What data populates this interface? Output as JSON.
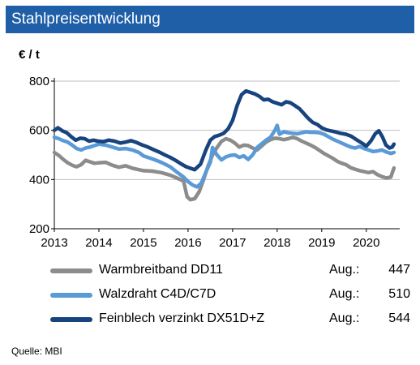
{
  "title": "Stahlpreisentwicklung",
  "source": "Quelle: MBI",
  "chart_data": {
    "type": "line",
    "unit_label": "€ / t",
    "x_label": "",
    "y_label": "",
    "ylim": [
      200,
      800
    ],
    "y_ticks": [
      "200",
      "400",
      "600",
      "800"
    ],
    "xlim": [
      2013.0,
      2020.75
    ],
    "x_ticks": [
      "2013",
      "2014",
      "2015",
      "2016",
      "2017",
      "2018",
      "2019",
      "2020"
    ],
    "grid": "horizontal",
    "legend_position": "bottom",
    "series": [
      {
        "name": "Warmbreitband DD11",
        "color": "#8c8c8c",
        "last_month": "Aug.:",
        "last_value": "447",
        "points": [
          [
            2013.0,
            510
          ],
          [
            2013.1,
            498
          ],
          [
            2013.2,
            482
          ],
          [
            2013.3,
            468
          ],
          [
            2013.4,
            458
          ],
          [
            2013.5,
            452
          ],
          [
            2013.6,
            460
          ],
          [
            2013.7,
            478
          ],
          [
            2013.8,
            472
          ],
          [
            2013.9,
            466
          ],
          [
            2014.0,
            468
          ],
          [
            2014.15,
            470
          ],
          [
            2014.3,
            458
          ],
          [
            2014.45,
            450
          ],
          [
            2014.6,
            456
          ],
          [
            2014.75,
            446
          ],
          [
            2014.9,
            440
          ],
          [
            2015.0,
            436
          ],
          [
            2015.2,
            434
          ],
          [
            2015.4,
            428
          ],
          [
            2015.6,
            418
          ],
          [
            2015.75,
            406
          ],
          [
            2015.9,
            394
          ],
          [
            2015.98,
            330
          ],
          [
            2016.05,
            318
          ],
          [
            2016.15,
            322
          ],
          [
            2016.25,
            350
          ],
          [
            2016.35,
            400
          ],
          [
            2016.45,
            455
          ],
          [
            2016.55,
            500
          ],
          [
            2016.65,
            530
          ],
          [
            2016.75,
            555
          ],
          [
            2016.85,
            566
          ],
          [
            2016.95,
            560
          ],
          [
            2017.05,
            548
          ],
          [
            2017.15,
            532
          ],
          [
            2017.25,
            540
          ],
          [
            2017.35,
            538
          ],
          [
            2017.45,
            528
          ],
          [
            2017.55,
            520
          ],
          [
            2017.65,
            536
          ],
          [
            2017.75,
            552
          ],
          [
            2017.85,
            562
          ],
          [
            2017.95,
            568
          ],
          [
            2018.05,
            566
          ],
          [
            2018.15,
            562
          ],
          [
            2018.25,
            566
          ],
          [
            2018.35,
            572
          ],
          [
            2018.45,
            566
          ],
          [
            2018.55,
            556
          ],
          [
            2018.65,
            548
          ],
          [
            2018.75,
            540
          ],
          [
            2018.85,
            530
          ],
          [
            2018.95,
            518
          ],
          [
            2019.05,
            506
          ],
          [
            2019.15,
            496
          ],
          [
            2019.25,
            486
          ],
          [
            2019.35,
            474
          ],
          [
            2019.45,
            466
          ],
          [
            2019.55,
            460
          ],
          [
            2019.65,
            448
          ],
          [
            2019.75,
            442
          ],
          [
            2019.85,
            436
          ],
          [
            2019.95,
            432
          ],
          [
            2020.05,
            428
          ],
          [
            2020.15,
            432
          ],
          [
            2020.25,
            420
          ],
          [
            2020.35,
            412
          ],
          [
            2020.45,
            406
          ],
          [
            2020.55,
            410
          ],
          [
            2020.62,
            447
          ]
        ]
      },
      {
        "name": "Walzdraht C4D/C7D",
        "color": "#5a9ad6",
        "last_month": "Aug.:",
        "last_value": "510",
        "points": [
          [
            2013.0,
            572
          ],
          [
            2013.1,
            566
          ],
          [
            2013.2,
            558
          ],
          [
            2013.3,
            552
          ],
          [
            2013.4,
            540
          ],
          [
            2013.5,
            526
          ],
          [
            2013.6,
            520
          ],
          [
            2013.7,
            528
          ],
          [
            2013.8,
            532
          ],
          [
            2013.9,
            538
          ],
          [
            2014.0,
            544
          ],
          [
            2014.15,
            540
          ],
          [
            2014.3,
            532
          ],
          [
            2014.45,
            524
          ],
          [
            2014.6,
            526
          ],
          [
            2014.75,
            520
          ],
          [
            2014.9,
            510
          ],
          [
            2015.0,
            496
          ],
          [
            2015.2,
            484
          ],
          [
            2015.4,
            470
          ],
          [
            2015.6,
            452
          ],
          [
            2015.75,
            430
          ],
          [
            2015.9,
            410
          ],
          [
            2016.0,
            392
          ],
          [
            2016.1,
            378
          ],
          [
            2016.2,
            370
          ],
          [
            2016.3,
            386
          ],
          [
            2016.4,
            430
          ],
          [
            2016.5,
            470
          ],
          [
            2016.55,
            530
          ],
          [
            2016.65,
            500
          ],
          [
            2016.75,
            480
          ],
          [
            2016.85,
            492
          ],
          [
            2016.95,
            498
          ],
          [
            2017.05,
            500
          ],
          [
            2017.15,
            490
          ],
          [
            2017.25,
            496
          ],
          [
            2017.35,
            482
          ],
          [
            2017.45,
            500
          ],
          [
            2017.55,
            530
          ],
          [
            2017.65,
            545
          ],
          [
            2017.75,
            560
          ],
          [
            2017.85,
            572
          ],
          [
            2017.95,
            600
          ],
          [
            2018.0,
            620
          ],
          [
            2018.05,
            584
          ],
          [
            2018.15,
            594
          ],
          [
            2018.25,
            590
          ],
          [
            2018.35,
            588
          ],
          [
            2018.45,
            586
          ],
          [
            2018.55,
            590
          ],
          [
            2018.65,
            594
          ],
          [
            2018.75,
            592
          ],
          [
            2018.85,
            592
          ],
          [
            2018.95,
            590
          ],
          [
            2019.05,
            584
          ],
          [
            2019.15,
            574
          ],
          [
            2019.25,
            564
          ],
          [
            2019.35,
            556
          ],
          [
            2019.45,
            548
          ],
          [
            2019.55,
            540
          ],
          [
            2019.65,
            532
          ],
          [
            2019.75,
            528
          ],
          [
            2019.85,
            534
          ],
          [
            2019.95,
            526
          ],
          [
            2020.05,
            520
          ],
          [
            2020.15,
            514
          ],
          [
            2020.25,
            516
          ],
          [
            2020.35,
            520
          ],
          [
            2020.45,
            512
          ],
          [
            2020.55,
            506
          ],
          [
            2020.62,
            510
          ]
        ]
      },
      {
        "name": "Feinblech verzinkt DX51D+Z",
        "color": "#17437e",
        "last_month": "Aug.:",
        "last_value": "544",
        "points": [
          [
            2013.0,
            600
          ],
          [
            2013.08,
            610
          ],
          [
            2013.18,
            598
          ],
          [
            2013.28,
            590
          ],
          [
            2013.38,
            574
          ],
          [
            2013.48,
            560
          ],
          [
            2013.58,
            568
          ],
          [
            2013.68,
            566
          ],
          [
            2013.78,
            556
          ],
          [
            2013.88,
            560
          ],
          [
            2013.98,
            556
          ],
          [
            2014.1,
            554
          ],
          [
            2014.22,
            560
          ],
          [
            2014.35,
            556
          ],
          [
            2014.48,
            548
          ],
          [
            2014.6,
            552
          ],
          [
            2014.72,
            558
          ],
          [
            2014.85,
            550
          ],
          [
            2014.98,
            540
          ],
          [
            2015.1,
            532
          ],
          [
            2015.22,
            522
          ],
          [
            2015.35,
            512
          ],
          [
            2015.48,
            500
          ],
          [
            2015.6,
            490
          ],
          [
            2015.72,
            478
          ],
          [
            2015.84,
            464
          ],
          [
            2015.96,
            452
          ],
          [
            2016.05,
            446
          ],
          [
            2016.15,
            440
          ],
          [
            2016.28,
            462
          ],
          [
            2016.4,
            520
          ],
          [
            2016.5,
            560
          ],
          [
            2016.6,
            575
          ],
          [
            2016.7,
            580
          ],
          [
            2016.8,
            588
          ],
          [
            2016.9,
            606
          ],
          [
            2017.0,
            640
          ],
          [
            2017.1,
            700
          ],
          [
            2017.2,
            745
          ],
          [
            2017.3,
            760
          ],
          [
            2017.4,
            754
          ],
          [
            2017.5,
            748
          ],
          [
            2017.6,
            738
          ],
          [
            2017.7,
            724
          ],
          [
            2017.8,
            726
          ],
          [
            2017.9,
            716
          ],
          [
            2018.0,
            710
          ],
          [
            2018.1,
            704
          ],
          [
            2018.2,
            716
          ],
          [
            2018.3,
            712
          ],
          [
            2018.4,
            700
          ],
          [
            2018.5,
            688
          ],
          [
            2018.6,
            668
          ],
          [
            2018.7,
            648
          ],
          [
            2018.8,
            632
          ],
          [
            2018.9,
            624
          ],
          [
            2019.0,
            610
          ],
          [
            2019.1,
            602
          ],
          [
            2019.2,
            598
          ],
          [
            2019.3,
            594
          ],
          [
            2019.42,
            588
          ],
          [
            2019.54,
            584
          ],
          [
            2019.66,
            576
          ],
          [
            2019.78,
            562
          ],
          [
            2019.9,
            548
          ],
          [
            2020.0,
            536
          ],
          [
            2020.1,
            556
          ],
          [
            2020.2,
            586
          ],
          [
            2020.28,
            598
          ],
          [
            2020.36,
            574
          ],
          [
            2020.44,
            540
          ],
          [
            2020.52,
            528
          ],
          [
            2020.58,
            532
          ],
          [
            2020.62,
            544
          ]
        ]
      }
    ]
  }
}
